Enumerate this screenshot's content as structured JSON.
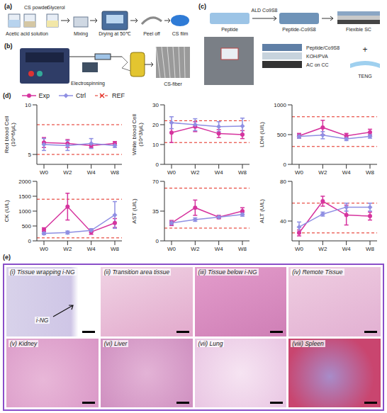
{
  "panel_a": {
    "label": "(a)",
    "cs_powder": "CS powder",
    "acetic_acid": "Acetic acid solution",
    "glycerol": "Glycerol",
    "mixing": "Mixing",
    "drying": "Drying at 50℃",
    "peel_off": "Peel off",
    "film": "CS film"
  },
  "panel_b": {
    "label": "(b)",
    "process": "Electrospinning",
    "fiber": "CS-fiber"
  },
  "panel_c": {
    "label": "(c)",
    "peptide": "Peptide",
    "ald": "ALD Co9S8",
    "peptide_co": "Peptide-Co9S8",
    "sc": "Flexible SC",
    "layers": [
      "Peptide/Co9S8",
      "KOH/PVA",
      "AC on CC"
    ],
    "plus": "+",
    "teng": "TENG"
  },
  "panel_d": {
    "label": "(d)"
  },
  "panel_e": {
    "label": "(e)",
    "images": [
      {
        "caption": "(i) Tissue wrapping i-NG",
        "arrow_label": "i-NG"
      },
      {
        "caption": "(ii) Transition area tissue"
      },
      {
        "caption": "(iii) Tissue below i-NG"
      },
      {
        "caption": "(iv) Remote Tissue"
      },
      {
        "caption": "(v) Kidney"
      },
      {
        "caption": "(vi) Liver"
      },
      {
        "caption": "(vii) Lung"
      },
      {
        "caption": "(viii) Spleen"
      }
    ]
  },
  "chart_data": [
    {
      "type": "line",
      "y_label": "Red blood Cell (10^6/μL)",
      "categories": [
        "W0",
        "W2",
        "W4",
        "W8"
      ],
      "ylim": [
        4,
        10
      ],
      "yticks": [
        5,
        10
      ],
      "legend": "top",
      "series": [
        {
          "name": "Exp",
          "color": "#d6339e",
          "marker": "circle",
          "values": [
            6.2,
            6.1,
            5.9,
            6.1
          ],
          "errors": [
            0.5,
            0.4,
            0.2,
            0.2
          ]
        },
        {
          "name": "Ctrl",
          "color": "#8f8fe3",
          "marker": "diamond",
          "values": [
            6.0,
            5.9,
            6.1,
            5.9
          ],
          "errors": [
            0.6,
            0.5,
            0.5,
            0.2
          ]
        }
      ],
      "reference": {
        "name": "REF",
        "color": "#e3261b",
        "line_style": "dashed",
        "values": [
          5,
          8
        ]
      }
    },
    {
      "type": "line",
      "y_label": "White blood Cell (10^3/μL)",
      "categories": [
        "W0",
        "W2",
        "W4",
        "W8"
      ],
      "ylim": [
        0,
        30
      ],
      "yticks": [
        0,
        10,
        20,
        30
      ],
      "series": [
        {
          "name": "Exp",
          "color": "#d6339e",
          "marker": "circle",
          "values": [
            16,
            19,
            15.5,
            15
          ],
          "errors": [
            5,
            2.5,
            2,
            2
          ]
        },
        {
          "name": "Ctrl",
          "color": "#8f8fe3",
          "marker": "diamond",
          "values": [
            21,
            20,
            19,
            19.3
          ],
          "errors": [
            3,
            3,
            2.5,
            4
          ]
        }
      ],
      "reference": {
        "name": "REF",
        "color": "#e3261b",
        "line_style": "dashed",
        "values": [
          11,
          22
        ]
      }
    },
    {
      "type": "line",
      "y_label": "LDH (U/L)",
      "categories": [
        "W0",
        "W2",
        "W4",
        "W8"
      ],
      "ylim": [
        0,
        1000
      ],
      "yticks": [
        0,
        500,
        1000
      ],
      "series": [
        {
          "name": "Exp",
          "color": "#d6339e",
          "marker": "circle",
          "values": [
            480,
            620,
            480,
            540
          ],
          "errors": [
            40,
            120,
            40,
            50
          ]
        },
        {
          "name": "Ctrl",
          "color": "#8f8fe3",
          "marker": "diamond",
          "values": [
            470,
            490,
            430,
            470
          ],
          "errors": [
            30,
            60,
            30,
            30
          ]
        }
      ],
      "reference": {
        "name": "REF",
        "color": "#e3261b",
        "line_style": "dashed",
        "values": [
          300,
          800
        ]
      }
    },
    {
      "type": "line",
      "y_label": "CK (U/L)",
      "categories": [
        "W0",
        "W2",
        "W4",
        "W8"
      ],
      "ylim": [
        0,
        2000
      ],
      "yticks": [
        0,
        500,
        1000,
        1500,
        2000
      ],
      "series": [
        {
          "name": "Exp",
          "color": "#d6339e",
          "marker": "circle",
          "values": [
            380,
            1150,
            300,
            600
          ],
          "errors": [
            60,
            450,
            80,
            150
          ]
        },
        {
          "name": "Ctrl",
          "color": "#8f8fe3",
          "marker": "diamond",
          "values": [
            250,
            280,
            350,
            870
          ],
          "errors": [
            40,
            50,
            60,
            450
          ]
        }
      ],
      "reference": {
        "name": "REF",
        "color": "#e3261b",
        "line_style": "dashed",
        "values": [
          100,
          1400
        ]
      }
    },
    {
      "type": "line",
      "y_label": "AST (U/L)",
      "categories": [
        "W0",
        "W2",
        "W4",
        "W8"
      ],
      "ylim": [
        0,
        70
      ],
      "yticks": [
        0,
        35,
        70
      ],
      "series": [
        {
          "name": "Exp",
          "color": "#d6339e",
          "marker": "circle",
          "values": [
            21,
            39,
            28,
            35
          ],
          "errors": [
            3,
            9,
            2,
            4
          ]
        },
        {
          "name": "Ctrl",
          "color": "#8f8fe3",
          "marker": "diamond",
          "values": [
            21,
            25,
            28,
            31
          ],
          "errors": [
            2,
            2,
            1,
            2
          ]
        }
      ],
      "reference": {
        "name": "REF",
        "color": "#e3261b",
        "line_style": "dashed",
        "values": [
          15,
          62
        ]
      }
    },
    {
      "type": "line",
      "y_label": "ALT (U/L)",
      "categories": [
        "W0",
        "W2",
        "W4",
        "W8"
      ],
      "ylim": [
        20,
        80
      ],
      "yticks": [
        40,
        80
      ],
      "series": [
        {
          "name": "Exp",
          "color": "#d6339e",
          "marker": "circle",
          "values": [
            28,
            60,
            46,
            45
          ],
          "errors": [
            3,
            5,
            10,
            4
          ]
        },
        {
          "name": "Ctrl",
          "color": "#8f8fe3",
          "marker": "diamond",
          "values": [
            34,
            47,
            54,
            54
          ],
          "errors": [
            5,
            2,
            4,
            4
          ]
        }
      ],
      "reference": {
        "name": "REF",
        "color": "#e3261b",
        "line_style": "dashed",
        "values": [
          28,
          58
        ]
      }
    }
  ]
}
